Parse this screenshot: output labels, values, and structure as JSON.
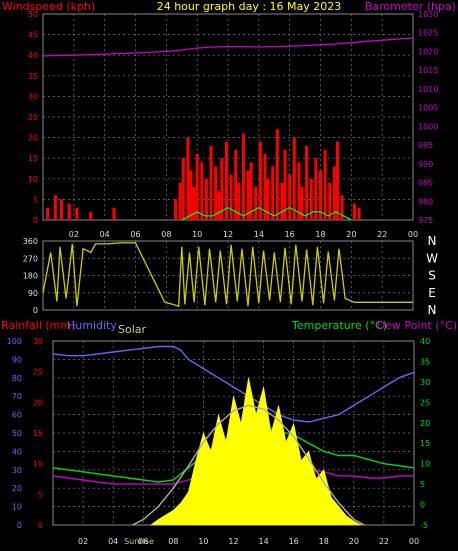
{
  "chart_data": [
    {
      "type": "line",
      "title": "24 hour graph day : 16 May 2023",
      "left_axis_label": "Windspeed (kph)",
      "right_axis_label": "Barometer (hpa)",
      "left_ylim": [
        0,
        50
      ],
      "left_ticks": [
        "0",
        "5",
        "10",
        "15",
        "20",
        "25",
        "30",
        "35",
        "40",
        "45",
        "50"
      ],
      "right_ylim": [
        975,
        1030
      ],
      "right_ticks": [
        "975",
        "980",
        "985",
        "990",
        "995",
        "1000",
        "1005",
        "1010",
        "1015",
        "1020",
        "1025",
        "1030"
      ],
      "x_ticks": [
        "02",
        "04",
        "06",
        "08",
        "10",
        "12",
        "14",
        "16",
        "18",
        "20",
        "22",
        "00"
      ],
      "grid": true,
      "series": [
        {
          "name": "Windspeed (kph)",
          "color": "#ff0000",
          "axis": "left",
          "style": "bars",
          "x": [
            0.3,
            0.8,
            1.2,
            1.7,
            2.2,
            3.1,
            4.6,
            8.6,
            8.9,
            9.1,
            9.4,
            9.6,
            9.8,
            10.0,
            10.3,
            10.6,
            10.9,
            11.2,
            11.4,
            11.6,
            11.9,
            12.2,
            12.5,
            12.7,
            13.0,
            13.3,
            13.5,
            13.8,
            14.1,
            14.4,
            14.6,
            14.9,
            15.2,
            15.5,
            15.7,
            16.0,
            16.3,
            16.6,
            16.8,
            17.1,
            17.4,
            17.7,
            18.0,
            18.3,
            18.6,
            18.9,
            19.1,
            19.4,
            20.2,
            20.5
          ],
          "values": [
            3,
            6,
            5,
            4,
            3,
            2,
            3,
            5,
            9,
            15,
            20,
            12,
            8,
            16,
            14,
            10,
            18,
            13,
            7,
            15,
            19,
            11,
            17,
            9,
            21,
            12,
            14,
            8,
            19,
            16,
            10,
            13,
            22,
            9,
            17,
            11,
            20,
            14,
            8,
            18,
            10,
            15,
            12,
            17,
            9,
            13,
            19,
            6,
            4,
            3
          ]
        },
        {
          "name": "Wind gust",
          "color": "#00ff00",
          "axis": "left",
          "style": "line",
          "x": [
            9.0,
            9.5,
            10.0,
            10.5,
            11.0,
            11.5,
            12.0,
            12.5,
            13.0,
            13.5,
            14.0,
            14.5,
            15.0,
            15.5,
            16.0,
            16.5,
            17.0,
            17.5,
            18.0,
            18.5,
            19.0,
            19.5,
            20.0
          ],
          "values": [
            0,
            1,
            2,
            1,
            1,
            2,
            3,
            2,
            1,
            2,
            3,
            2,
            1,
            2,
            3,
            2,
            1,
            2,
            2,
            1,
            2,
            1,
            0
          ]
        },
        {
          "name": "Barometer (hpa)",
          "color": "#cc00cc",
          "axis": "right",
          "style": "line",
          "x": [
            0,
            2,
            4,
            6,
            8,
            9,
            10,
            11,
            12,
            13,
            14,
            15,
            16,
            17,
            18,
            19,
            20,
            21,
            22,
            23,
            24
          ],
          "values": [
            1018.8,
            1019.0,
            1019.3,
            1019.6,
            1020.0,
            1020.4,
            1020.9,
            1021.2,
            1021.3,
            1021.3,
            1021.2,
            1021.3,
            1021.4,
            1021.6,
            1021.8,
            1022.0,
            1022.3,
            1022.7,
            1023.0,
            1023.3,
            1023.6
          ]
        }
      ]
    },
    {
      "type": "line",
      "left_ylim": [
        0,
        360
      ],
      "left_ticks": [
        "0",
        "90",
        "180",
        "270",
        "360"
      ],
      "right_labels": [
        "N",
        "W",
        "S",
        "E",
        "N"
      ],
      "x_ticks": [],
      "series": [
        {
          "name": "Wind direction",
          "color": "#cccc00",
          "style": "line",
          "x": [
            0,
            0.5,
            0.9,
            1.1,
            1.5,
            1.9,
            2.2,
            2.6,
            3.1,
            3.4,
            4.2,
            5.0,
            6.0,
            7.9,
            8.4,
            8.8,
            9.0,
            9.2,
            9.5,
            9.8,
            10.1,
            10.5,
            10.8,
            11.2,
            11.5,
            11.9,
            12.2,
            12.6,
            12.9,
            13.3,
            13.6,
            14.0,
            14.3,
            14.7,
            15.0,
            15.4,
            15.7,
            16.1,
            16.4,
            16.8,
            17.1,
            17.5,
            17.8,
            18.2,
            18.5,
            18.9,
            19.2,
            19.6,
            20.2,
            21.0,
            22.0,
            23.0,
            24.0
          ],
          "values": [
            90,
            300,
            45,
            330,
            60,
            345,
            20,
            320,
            300,
            345,
            345,
            350,
            350,
            40,
            30,
            20,
            330,
            30,
            300,
            40,
            330,
            25,
            320,
            40,
            310,
            30,
            340,
            45,
            320,
            20,
            330,
            35,
            310,
            50,
            300,
            40,
            325,
            30,
            340,
            45,
            315,
            25,
            330,
            35,
            305,
            50,
            320,
            60,
            40,
            40,
            40,
            40,
            40
          ]
        }
      ]
    },
    {
      "type": "line",
      "labels": [
        "Rainfall (mm)",
        "Humidity",
        "Solar",
        "Temperature (°C)",
        "Dew Point (°C)"
      ],
      "sunrise_label": "Sunrise",
      "humidity_ticks": [
        "0",
        "10",
        "20",
        "30",
        "40",
        "50",
        "60",
        "70",
        "80",
        "90",
        "100"
      ],
      "rain_ticks": [
        "0",
        "5",
        "10",
        "15",
        "20",
        "25",
        "30"
      ],
      "temp_ylim": [
        -5,
        40
      ],
      "temp_ticks": [
        "-5",
        "0",
        "5",
        "10",
        "15",
        "20",
        "25",
        "30",
        "35",
        "40"
      ],
      "x_ticks": [
        "02",
        "04",
        "06",
        "08",
        "10",
        "12",
        "14",
        "16",
        "18",
        "20",
        "22",
        "00"
      ],
      "series": [
        {
          "name": "Humidity",
          "color": "#6666ff",
          "axis": "humidity",
          "x": [
            0,
            1,
            2,
            3,
            4,
            5,
            6,
            7,
            8,
            8.5,
            9,
            10,
            11,
            12,
            13,
            14,
            15,
            16,
            17,
            18,
            19,
            20,
            21,
            22,
            23,
            24
          ],
          "values": [
            93,
            92,
            92,
            93,
            94,
            95,
            96,
            97,
            97,
            95,
            90,
            85,
            80,
            75,
            70,
            65,
            60,
            57,
            56,
            58,
            60,
            65,
            70,
            75,
            80,
            83
          ]
        },
        {
          "name": "Temperature",
          "color": "#00dd00",
          "axis": "temp",
          "x": [
            0,
            1,
            2,
            3,
            4,
            5,
            6,
            7,
            8,
            9,
            10,
            11,
            12,
            13,
            14,
            15,
            16,
            17,
            18,
            19,
            20,
            21,
            22,
            23,
            24
          ],
          "values": [
            9,
            8.5,
            8,
            7.5,
            7,
            6.5,
            6,
            5.5,
            6,
            9,
            12,
            15,
            17,
            18,
            19,
            18,
            17,
            15,
            13,
            12,
            12,
            11,
            10,
            9.5,
            9
          ]
        },
        {
          "name": "Dew Point",
          "color": "#cc00cc",
          "axis": "temp",
          "x": [
            0,
            1,
            2,
            3,
            4,
            5,
            6,
            7,
            8,
            9,
            10,
            11,
            12,
            13,
            14,
            15,
            16,
            17,
            18,
            19,
            20,
            21,
            22,
            23,
            24
          ],
          "values": [
            7,
            6.5,
            6,
            5.5,
            5,
            5,
            5,
            5,
            5,
            6,
            7,
            8,
            8.5,
            9,
            9,
            9,
            9,
            8.5,
            8,
            7,
            7,
            6.5,
            6.5,
            7,
            7
          ]
        },
        {
          "name": "Solar",
          "color": "#ffff00",
          "axis": "humidity",
          "style": "area",
          "x": [
            6.5,
            7,
            8,
            8.5,
            9,
            9.5,
            10,
            10.5,
            11,
            11.5,
            12,
            12.5,
            13,
            13.5,
            14,
            14.5,
            15,
            15.5,
            16,
            16.5,
            17,
            17.5,
            18,
            18.5,
            19,
            19.5,
            20,
            20.5
          ],
          "values": [
            0,
            3,
            8,
            12,
            18,
            35,
            50,
            40,
            60,
            45,
            70,
            55,
            80,
            60,
            75,
            50,
            65,
            45,
            55,
            35,
            40,
            25,
            30,
            15,
            10,
            5,
            2,
            0
          ]
        },
        {
          "name": "Theoretical solar",
          "color": "#aaaaaa",
          "axis": "humidity",
          "x": [
            5.3,
            6,
            7,
            8,
            9,
            10,
            11,
            12,
            13,
            14,
            15,
            16,
            17,
            18,
            19,
            20,
            20.7
          ],
          "values": [
            0,
            3,
            10,
            20,
            32,
            45,
            55,
            62,
            65,
            63,
            57,
            48,
            36,
            23,
            12,
            3,
            0
          ]
        }
      ]
    }
  ]
}
